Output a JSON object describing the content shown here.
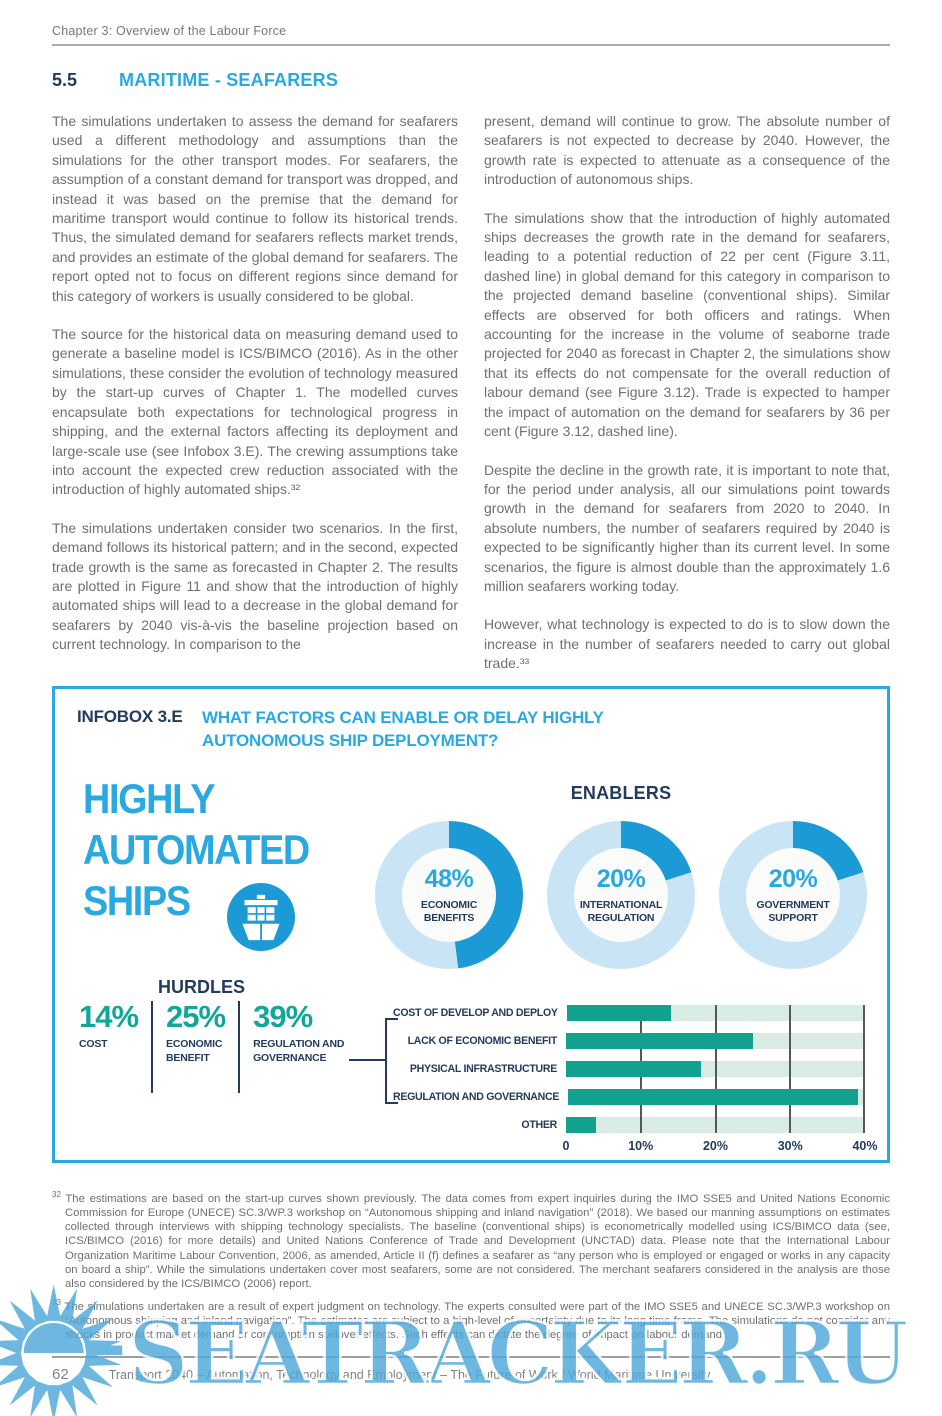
{
  "colors": {
    "accent_cyan": "#29a9e0",
    "navy": "#243b5e",
    "teal": "#12a697",
    "donut_active": "#1c9ad6",
    "donut_rest": "#c9e4f4",
    "bar_fill": "#12a08f",
    "bar_track": "#d9ece3",
    "watermark_blue": "#4fa8da"
  },
  "header": {
    "chapter": "Chapter 3: Overview of the Labour Force"
  },
  "section": {
    "number": "5.5",
    "title": "MARITIME - SEAFARERS"
  },
  "columns": {
    "left": [
      "The simulations undertaken to assess the demand for seafarers used a different methodology and assumptions than the simulations for the other transport modes. For seafarers, the assumption of a constant demand for transport was dropped, and instead it was based on the premise that the demand for maritime transport would continue to follow its historical trends. Thus, the simulated demand for seafarers reflects market trends, and provides an estimate of the global demand for seafarers. The report opted not to focus on different regions since demand for this category of workers is usually considered to be global.",
      "The source for the historical data on measuring demand used to generate a baseline model is ICS/BIMCO (2016). As in the other simulations, these consider the evolution of technology measured by the start-up curves of Chapter 1. The modelled curves encapsulate both expectations for technological progress in shipping, and the external factors affecting its deployment and large-scale use (see Infobox 3.E). The crewing assumptions take into account the expected crew reduction associated with the introduction of highly automated ships.³²",
      "The simulations undertaken consider two scenarios. In the first, demand follows its historical pattern; and in the second, expected trade growth is the same as forecasted in Chapter 2. The results are plotted in Figure 11 and show that the introduction of highly automated ships will lead to a decrease in the global demand for seafarers by 2040 vis-à-vis the baseline projection based on current technology. In comparison to the"
    ],
    "right": [
      "present, demand will continue to grow. The absolute number of seafarers is not expected to decrease by 2040. However, the growth rate is expected to attenuate as a consequence of the introduction of autonomous ships.",
      "The simulations show that the introduction of highly automated ships decreases the growth rate in the demand for seafarers, leading to a potential reduction of 22 per cent (Figure 3.11, dashed line) in global demand for this category in comparison to the projected demand baseline (conventional ships). Similar effects are observed for both officers and ratings. When accounting for the increase in the volume of seaborne trade projected for 2040 as forecast in Chapter 2, the simulations show that its effects do not compensate for the overall reduction of labour demand (see Figure 3.12). Trade is expected to hamper the impact of automation on the demand for seafarers by 36 per cent (Figure 3.12, dashed line).",
      "Despite the decline in the growth rate, it is important to note that, for the period under analysis, all our simulations point towards growth in the demand for seafarers from 2020 to 2040. In absolute numbers, the number of seafarers required by 2040 is expected to be significantly higher than its current level. In some scenarios, the figure is almost double than the approximately 1.6 million seafarers working today.",
      "However, what technology is expected to do is to slow down the increase in the number of seafarers needed to carry out global trade.³³"
    ]
  },
  "infobox": {
    "label": "INFOBOX 3.E",
    "title": "WHAT FACTORS CAN ENABLE OR DELAY HIGHLY AUTONOMOUS SHIP DEPLOYMENT?",
    "headline": "HIGHLY\nAUTOMATED\nSHIPS",
    "ship_icon": "container-ship-icon",
    "enablers": {
      "title": "ENABLERS",
      "donuts": [
        {
          "value": "48%",
          "pct": 48,
          "label": "ECONOMIC\nBENEFITS"
        },
        {
          "value": "20%",
          "pct": 20,
          "label": "INTERNATIONAL\nREGULATION"
        },
        {
          "value": "20%",
          "pct": 20,
          "label": "GOVERNMENT\nSUPPORT"
        }
      ]
    },
    "hurdles": {
      "title": "HURDLES",
      "items": [
        {
          "value": "14%",
          "label": "COST"
        },
        {
          "value": "25%",
          "label": "ECONOMIC\nBENEFIT"
        },
        {
          "value": "39%",
          "label": "REGULATION AND\nGOVERNANCE"
        }
      ]
    }
  },
  "chart_data": [
    {
      "type": "pie",
      "style": "donut",
      "title": "ENABLERS",
      "unit": "%",
      "series": [
        {
          "name": "ECONOMIC BENEFITS",
          "value": 48
        },
        {
          "name": "INTERNATIONAL REGULATION",
          "value": 20
        },
        {
          "name": "GOVERNMENT SUPPORT",
          "value": 20
        }
      ]
    },
    {
      "type": "bar",
      "orientation": "horizontal",
      "title": "HURDLES",
      "categories": [
        "COST OF DEVELOP AND DEPLOY",
        "LACK OF ECONOMIC BENEFIT",
        "PHYSICAL INFRASTRUCTURE",
        "REGULATION AND GOVERNANCE",
        "OTHER"
      ],
      "values": [
        14,
        25,
        18,
        39,
        4
      ],
      "xlim": [
        0,
        40
      ],
      "xticks": [
        "0",
        "10%",
        "20%",
        "30%",
        "40%"
      ],
      "grid": true,
      "legend": false
    }
  ],
  "footnotes": [
    {
      "num": "32",
      "text": "The estimations are based on the start-up curves shown previously. The data comes from expert inquiries during the IMO SSE5 and United Nations Economic Commission for Europe (UNECE) SC.3/WP.3 workshop on “Autonomous shipping and inland navigation” (2018). We based our manning assumptions on estimates collected through interviews with shipping technology specialists. The baseline (conventional ships) is econometrically modelled using ICS/BIMCO data (see, ICS/BIMCO (2016) for more details) and United Nations Conference of Trade and Development (UNCTAD) data. Please note that the International Labour Organization Maritime Labour Convention, 2006, as amended, Article II (f) defines a seafarer as “any person who is employed or engaged or works in any capacity on board a ship”. While the simulations undertaken cover most seafarers, some are not considered. The merchant seafarers considered in the analysis are those also considered by the ICS/BIMCO (2006) report."
    },
    {
      "num": "33",
      "text": "The simulations undertaken are a result of expert judgment on technology. The experts consulted were part of the IMO SSE5 and UNECE SC.3/WP.3 workshop on “Autonomous shipping and inland navigation”. The estimates are subject to a high-level of uncertainty due to its long time frame. The simulations do not consider any shocks in product market demand or consumption spillover effects. Such effects can dictate the degree of impact on labour demand."
    }
  ],
  "footer": {
    "page_number": "62",
    "text": "Transport 2040 – Automation, Technology and Employment – The Future of Work   /   World Maritime University"
  },
  "watermark": {
    "text": "SEATRACKER.RU"
  }
}
